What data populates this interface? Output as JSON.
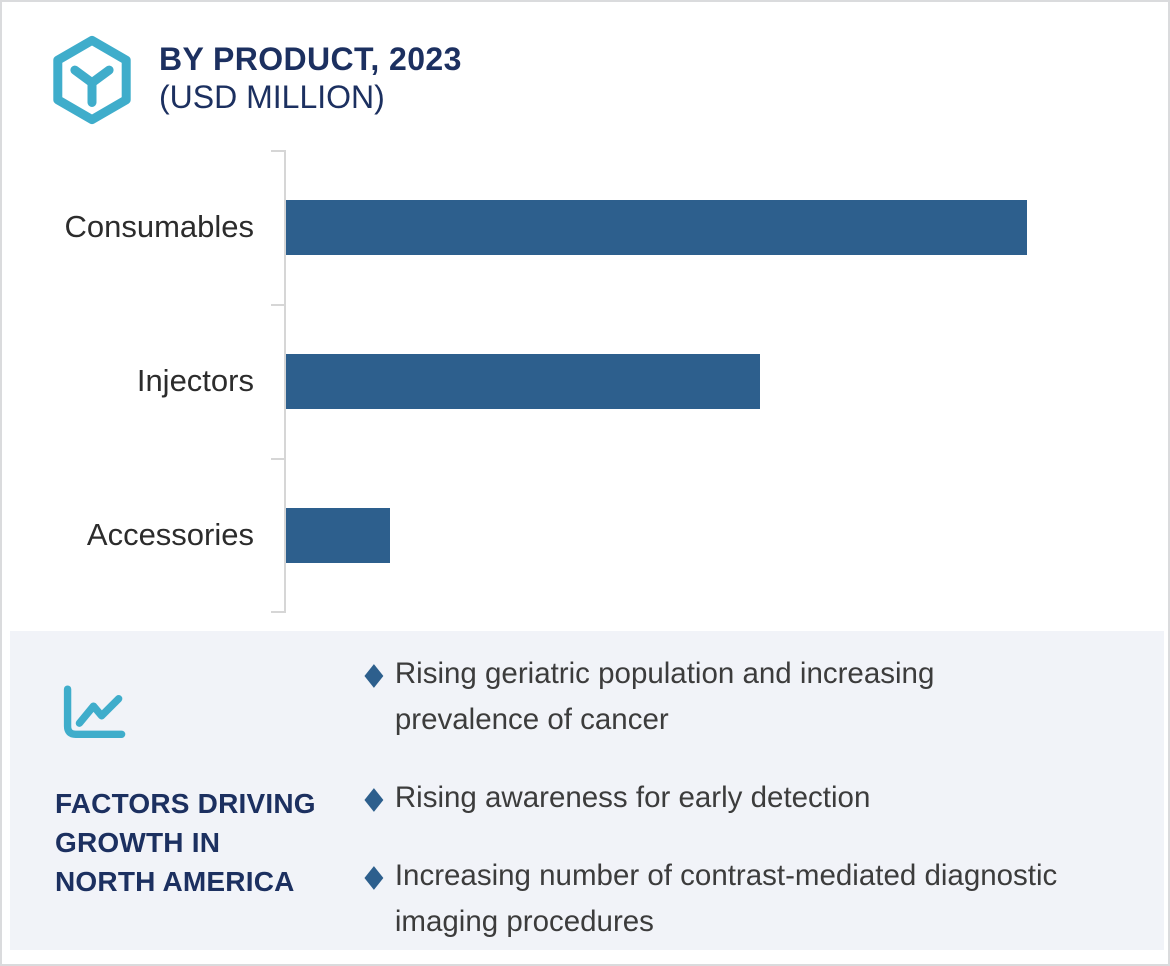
{
  "header": {
    "icon": "hexagon-y-logo",
    "title": "BY PRODUCT, 2023",
    "subtitle": "(USD MILLION)"
  },
  "chart_data": {
    "type": "bar",
    "orientation": "horizontal",
    "title": "BY PRODUCT, 2023 (USD MILLION)",
    "categories": [
      "Consumables",
      "Injectors",
      "Accessories"
    ],
    "values": [
      100,
      64,
      14
    ],
    "value_note": "axis has no tick labels; values estimated as percent of longest bar",
    "xlim": [
      0,
      100
    ],
    "xlabel": "",
    "ylabel": "",
    "grid": false,
    "legend": false,
    "bar_color": "#2d5f8d",
    "axis_color": "#d6d6d6"
  },
  "factors": {
    "icon": "line-chart-icon",
    "heading": "FACTORS DRIVING\nGROWTH IN\nNORTH AMERICA",
    "bullet_marker": "◆",
    "items": [
      {
        "text": "Rising geriatric population and increasing prevalence of cancer"
      },
      {
        "text": "Rising awareness for early detection"
      },
      {
        "text": "Increasing number of contrast-mediated diagnostic imaging procedures"
      }
    ]
  },
  "colors": {
    "teal": "#3fadcb",
    "navy": "#1c3060",
    "bar_blue": "#2d5f8d",
    "panel_bg": "#f1f3f8",
    "axis_gray": "#d6d6d6",
    "text_dark": "#3c3c3c"
  }
}
